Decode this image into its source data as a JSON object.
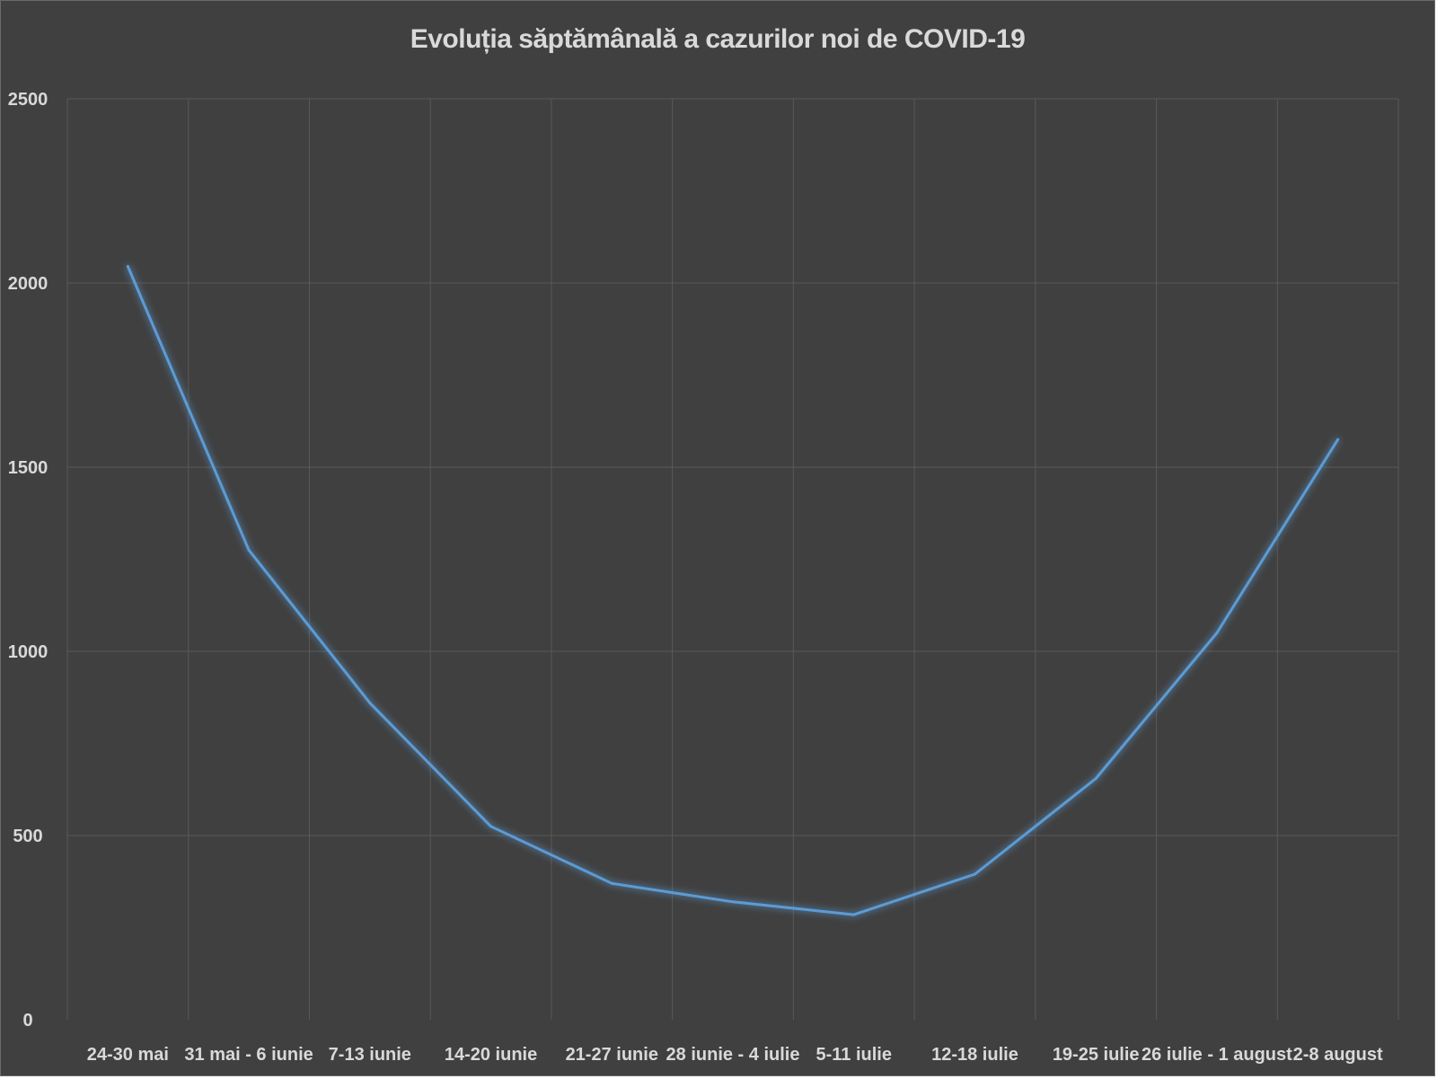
{
  "chart_data": {
    "type": "line",
    "title": "Evoluția săptămânală a cazurilor noi de COVID-19",
    "xlabel": "",
    "ylabel": "",
    "categories": [
      "24-30 mai",
      "31 mai - 6 iunie",
      "7-13 iunie",
      "14-20 iunie",
      "21-27 iunie",
      "28 iunie - 4 iulie",
      "5-11 iulie",
      "12-18 iulie",
      "19-25 iulie",
      "26 iulie - 1 august",
      "2-8 august"
    ],
    "series": [
      {
        "values": [
          2045,
          1275,
          860,
          525,
          370,
          320,
          285,
          395,
          655,
          1050,
          1575
        ]
      }
    ],
    "ylim": [
      0,
      2500
    ],
    "yticks": [
      0,
      500,
      1000,
      1500,
      2000,
      2500
    ],
    "grid": true,
    "legend": "none",
    "colors": {
      "background": "#404040",
      "grid": "#595959",
      "line": "#5b9bd5",
      "text": "#d9d9d9"
    }
  }
}
